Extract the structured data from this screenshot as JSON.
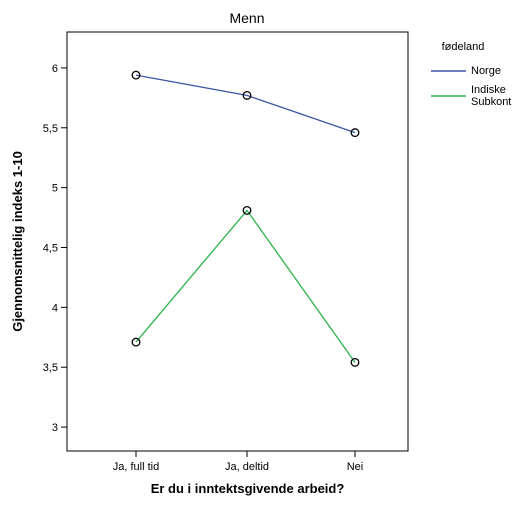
{
  "chart_data": {
    "type": "line",
    "title": "Menn",
    "xlabel": "Er du i inntektsgivende arbeid?",
    "ylabel": "Gjennomsnittelig indeks 1-10",
    "categories": [
      "Ja, full tid",
      "Ja, deltid",
      "Nei"
    ],
    "y_ticks": [
      3,
      3.5,
      4,
      4.5,
      5,
      5.5,
      6
    ],
    "y_tick_labels": [
      "3",
      "3,5",
      "4",
      "4,5",
      "5",
      "5,5",
      "6"
    ],
    "ylim": [
      2.8,
      6.3
    ],
    "grid": false,
    "legend": {
      "title": "fødeland",
      "placement": "right",
      "entries": [
        {
          "lines": [
            "Norge"
          ]
        },
        {
          "lines": [
            "Indiske",
            "Subkont"
          ]
        }
      ]
    },
    "series": [
      {
        "name": "Norge",
        "color": "#3c55a5",
        "values": [
          5.94,
          5.77,
          5.46
        ]
      },
      {
        "name": "Indiske Subkont",
        "color": "#2bb34a",
        "values": [
          3.71,
          4.81,
          3.54
        ]
      }
    ]
  }
}
